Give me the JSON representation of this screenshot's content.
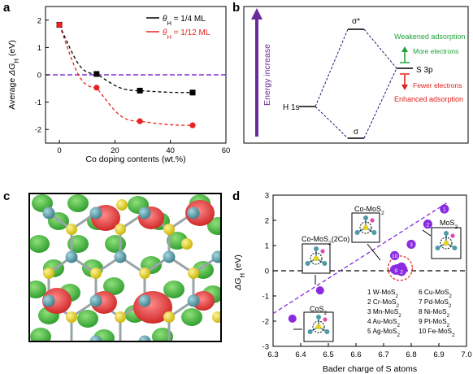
{
  "panels": {
    "a": "a",
    "b": "b",
    "c": "c",
    "d": "d"
  },
  "panel_b": {
    "energy_arrow_label": "Energy increase",
    "h1s_label": "H 1s",
    "s3p_label": "S 3p",
    "sigma_star_label": "σ*",
    "sigma_label": "σ",
    "weakened_label": "Weakened adsorption",
    "more_electrons_label": "More electrons",
    "fewer_electrons_label": "Fewer electrons",
    "enhanced_label": "Enhanced adsorption",
    "colors": {
      "green": "#1fa23a",
      "red": "#e0201c",
      "navy": "#1a1a6e",
      "purple": "#6a2b9b"
    }
  },
  "panel_c": {
    "colors": {
      "s_atom": "#e6d41c",
      "mo_atom": "#4f9aa8",
      "green_lobe": "#3fb83a",
      "red_lobe": "#e03030"
    }
  },
  "chart_data": [
    {
      "panel": "a",
      "type": "line",
      "xlabel": "Co doping contents (wt.%)",
      "ylabel": "Average ΔG_H (eV)",
      "xlim": [
        -5,
        60
      ],
      "ylim": [
        -2.5,
        2.5
      ],
      "xticks": [
        0,
        20,
        40,
        60
      ],
      "yticks": [
        -2,
        -1,
        0,
        1,
        2
      ],
      "zero_line_color": "#7b2fd6",
      "grid": false,
      "legend_position": "top-right",
      "series": [
        {
          "name": "θ_H = 1/4 ML",
          "color": "#000000",
          "marker": "square",
          "x": [
            0,
            13.4,
            29,
            48
          ],
          "y": [
            1.83,
            0.03,
            -0.58,
            -0.65
          ]
        },
        {
          "name": "θ_H = 1/12 ML",
          "color": "#e8231f",
          "marker": "circle",
          "x": [
            0,
            13.4,
            29,
            48
          ],
          "y": [
            1.83,
            -0.47,
            -1.7,
            -1.85
          ]
        }
      ]
    },
    {
      "panel": "d",
      "type": "scatter",
      "xlabel": "Bader charge of S atoms",
      "ylabel": "ΔG_H (eV)",
      "xlim": [
        6.3,
        7.0
      ],
      "ylim": [
        -3,
        3
      ],
      "xticks": [
        "6.3",
        "6.4",
        "6.5",
        "6.6",
        "6.7",
        "6.8",
        "6.9",
        "7.0"
      ],
      "yticks": [
        -3,
        -2,
        -1,
        0,
        1,
        2,
        3
      ],
      "grid": false,
      "point_color": "#8a2be2",
      "points": [
        {
          "x": 6.37,
          "y": -1.9,
          "label": ""
        },
        {
          "x": 6.47,
          "y": -0.78,
          "label": ""
        },
        {
          "x": 6.74,
          "y": 0.05,
          "label": "6"
        },
        {
          "x": 6.75,
          "y": 0.08,
          "label": "7"
        },
        {
          "x": 6.76,
          "y": 0.0,
          "label": "8"
        },
        {
          "x": 6.765,
          "y": 0.15,
          "label": "4"
        },
        {
          "x": 6.77,
          "y": 0.05,
          "label": "5"
        },
        {
          "x": 6.745,
          "y": 0.02,
          "label": "9"
        },
        {
          "x": 6.765,
          "y": -0.03,
          "label": "2"
        },
        {
          "x": 6.74,
          "y": 0.6,
          "label": "10"
        },
        {
          "x": 6.8,
          "y": 1.05,
          "label": "3"
        },
        {
          "x": 6.86,
          "y": 1.85,
          "label": "2"
        },
        {
          "x": 6.92,
          "y": 2.45,
          "label": "1"
        }
      ],
      "fit_line": {
        "x": [
          6.3,
          6.93
        ],
        "y": [
          -1.7,
          2.7
        ]
      },
      "structure_labels": [
        "CoS2",
        "Co-MoS2(2Co)",
        "Co-MoS2",
        "MoS2"
      ],
      "legend_entries": [
        "1   W-MoS2",
        "2   Cr-MoS2",
        "3   Mn-MoS2",
        "4   Au-MoS2",
        "5   Ag-MoS2",
        "6   Cu-MoS2",
        "7   Pd-MoS2",
        "8   Ni-MoS2",
        "9   Pt-MoS2",
        "10  Fe-MoS2"
      ]
    }
  ]
}
